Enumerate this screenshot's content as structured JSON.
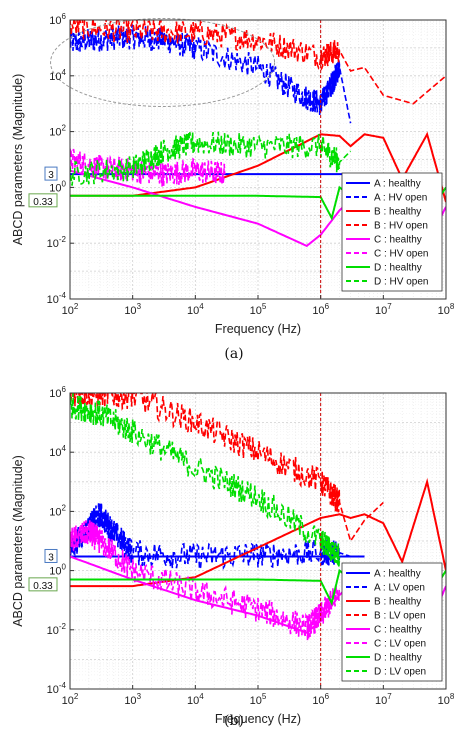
{
  "chart_data": [
    {
      "type": "line",
      "caption": "(a)",
      "xlabel": "Frequency (Hz)",
      "ylabel": "ABCD parameters (Magnitude)",
      "xscale": "log",
      "yscale": "log",
      "xlim": [
        100,
        100000000
      ],
      "ylim": [
        0.0001,
        1000000
      ],
      "x_tick_labels": [
        "10^2",
        "10^3",
        "10^4",
        "10^5",
        "10^6",
        "10^7",
        "10^8"
      ],
      "y_tick_labels": [
        "10^-4",
        "10^-2",
        "10^0",
        "10^2",
        "10^4",
        "10^6"
      ],
      "grid": true,
      "legend_placement": "lower-right",
      "annotations": {
        "A_level": "3",
        "D_level": "0.33",
        "vertical_marker_hz": 1000000
      },
      "highlight": "dashed ellipse around B/A HV-open curves at low frequency",
      "series": [
        {
          "name": "A : healthy",
          "color": "#0000ff",
          "style": "solid",
          "x": [
            100,
            1000000,
            2000000,
            5000000
          ],
          "y": [
            3,
            3,
            3,
            3
          ]
        },
        {
          "name": "A : HV open",
          "color": "#0000ff",
          "style": "dashed",
          "noisy": true,
          "x": [
            100,
            300,
            1000,
            3000,
            10000,
            100000,
            500000,
            1000000,
            1500000,
            2000000,
            3000000
          ],
          "y": [
            150000,
            200000,
            250000,
            200000,
            100000,
            20000,
            2000,
            1000,
            5000,
            20000,
            200
          ]
        },
        {
          "name": "B : healthy",
          "color": "#ff0000",
          "style": "solid",
          "x": [
            100,
            1000,
            10000,
            100000,
            1000000,
            2000000,
            3000000,
            5000000,
            10000000,
            20000000,
            50000000,
            100000000
          ],
          "y": [
            0.5,
            0.5,
            1,
            6,
            80,
            70,
            30,
            80,
            60,
            2,
            80,
            0.3
          ]
        },
        {
          "name": "B : HV open",
          "color": "#ff0000",
          "style": "dashed",
          "noisy": true,
          "x": [
            100,
            1000,
            10000,
            100000,
            1000000,
            2000000,
            3000000,
            5000000,
            10000000,
            30000000,
            100000000
          ],
          "y": [
            600000,
            400000,
            350000,
            200000,
            50000,
            80000,
            15000,
            20000,
            2000,
            1000,
            10000
          ]
        },
        {
          "name": "C : healthy",
          "color": "#ff00ff",
          "style": "solid",
          "x": [
            100,
            1000,
            10000,
            100000,
            600000,
            1000000,
            2000000,
            5000000,
            10000000,
            50000000,
            100000000
          ],
          "y": [
            4,
            1,
            0.2,
            0.05,
            0.008,
            0.02,
            0.15,
            1,
            2,
            0.01,
            0.2
          ]
        },
        {
          "name": "C : HV open",
          "color": "#ff00ff",
          "style": "dashed",
          "noisy": true,
          "x": [
            100,
            300,
            1000,
            3000,
            10000,
            30000
          ],
          "y": [
            10,
            5,
            4,
            3,
            4,
            3
          ]
        },
        {
          "name": "D : healthy",
          "color": "#00dd00",
          "style": "solid",
          "x": [
            100,
            10000,
            100000,
            1000000,
            1500000,
            2000000,
            3000000,
            5000000,
            10000000,
            50000000,
            100000000
          ],
          "y": [
            0.5,
            0.5,
            0.5,
            0.45,
            0.08,
            1,
            0.5,
            0.1,
            1,
            0.1,
            1
          ]
        },
        {
          "name": "D : HV open",
          "color": "#00dd00",
          "style": "dashed",
          "noisy": true,
          "x": [
            100,
            1000,
            3000,
            10000,
            100000,
            1000000,
            2000000,
            3000000
          ],
          "y": [
            3,
            5,
            20,
            40,
            30,
            30,
            8,
            20
          ]
        }
      ]
    },
    {
      "type": "line",
      "caption": "(b)",
      "xlabel": "Frequency (Hz)",
      "ylabel": "ABCD parameters (Magnitude)",
      "xscale": "log",
      "yscale": "log",
      "xlim": [
        100,
        100000000
      ],
      "ylim": [
        0.0001,
        1000000
      ],
      "x_tick_labels": [
        "10^2",
        "10^3",
        "10^4",
        "10^5",
        "10^6",
        "10^7",
        "10^8"
      ],
      "y_tick_labels": [
        "10^-4",
        "10^-2",
        "10^0",
        "10^2",
        "10^4",
        "10^6"
      ],
      "grid": true,
      "legend_placement": "lower-right",
      "annotations": {
        "A_level": "3",
        "D_level": "0.33",
        "vertical_marker_hz": 1000000
      },
      "series": [
        {
          "name": "A : healthy",
          "color": "#0000ff",
          "style": "solid",
          "x": [
            100,
            1000000,
            2000000,
            5000000
          ],
          "y": [
            3,
            3,
            3,
            3
          ]
        },
        {
          "name": "A : LV open",
          "color": "#0000ff",
          "style": "dashed",
          "noisy": true,
          "x": [
            100,
            200,
            300,
            500,
            1000,
            10000,
            100000,
            1000000,
            2000000,
            3000000
          ],
          "y": [
            5,
            30,
            80,
            20,
            4,
            3,
            3.5,
            4,
            4,
            3
          ]
        },
        {
          "name": "B : healthy",
          "color": "#ff0000",
          "style": "solid",
          "x": [
            100,
            1000,
            10000,
            100000,
            1000000,
            2000000,
            3000000,
            5000000,
            10000000,
            20000000,
            50000000,
            100000000
          ],
          "y": [
            0.3,
            0.3,
            0.6,
            6,
            60,
            80,
            60,
            80,
            40,
            2,
            1000,
            1
          ]
        },
        {
          "name": "B : LV open",
          "color": "#ff0000",
          "style": "dashed",
          "noisy": true,
          "x": [
            100,
            300,
            1000,
            10000,
            100000,
            1000000,
            2000000,
            3000000,
            5000000,
            10000000
          ],
          "y": [
            1000000,
            900000,
            800000,
            100000,
            10000,
            1000,
            200,
            10,
            50,
            200
          ]
        },
        {
          "name": "C : healthy",
          "color": "#ff00ff",
          "style": "solid",
          "x": [
            100,
            1000,
            10000,
            100000,
            600000,
            1000000,
            2000000,
            5000000,
            10000000,
            50000000,
            100000000
          ],
          "y": [
            3,
            0.5,
            0.1,
            0.03,
            0.008,
            0.02,
            0.15,
            1,
            1.5,
            0.01,
            0.3
          ]
        },
        {
          "name": "C : LV open",
          "color": "#ff00ff",
          "style": "dashed",
          "noisy": true,
          "x": [
            100,
            200,
            300,
            1000,
            10000,
            100000,
            600000,
            1000000,
            2000000
          ],
          "y": [
            10,
            20,
            10,
            1,
            0.2,
            0.05,
            0.012,
            0.03,
            0.2
          ]
        },
        {
          "name": "D : healthy",
          "color": "#00dd00",
          "style": "solid",
          "x": [
            100,
            10000,
            100000,
            1000000,
            1500000,
            2000000,
            3000000,
            5000000,
            10000000,
            50000000,
            100000000
          ],
          "y": [
            0.5,
            0.5,
            0.5,
            0.45,
            0.08,
            1,
            0.5,
            0.1,
            1,
            0.1,
            1
          ]
        },
        {
          "name": "D : LV open",
          "color": "#00dd00",
          "style": "dashed",
          "noisy": true,
          "x": [
            100,
            300,
            1000,
            10000,
            100000,
            1000000,
            2000000
          ],
          "y": [
            400000,
            200000,
            50000,
            3000,
            300,
            10,
            3
          ]
        }
      ]
    }
  ]
}
